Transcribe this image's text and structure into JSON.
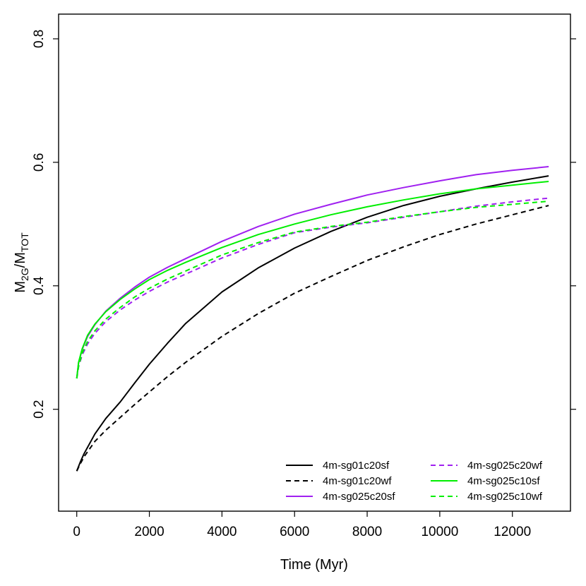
{
  "chart_data": {
    "type": "line",
    "xlabel": "Time (Myr)",
    "ylabel": {
      "main_1": "M",
      "sub_1": "2G",
      "slash": "/",
      "main_2": "M",
      "sub_2": "TOT"
    },
    "xlim": [
      -500,
      13600
    ],
    "ylim": [
      0.035,
      0.84
    ],
    "xticks": [
      0,
      2000,
      4000,
      6000,
      8000,
      10000,
      12000
    ],
    "yticks": [
      0.2,
      0.4,
      0.6,
      0.8
    ],
    "ytick_labels": [
      "0.2",
      "0.4",
      "0.6",
      "0.8"
    ],
    "grid": false,
    "legend_position": "bottom-right",
    "series": [
      {
        "name": "4m-sg01c20sf",
        "color": "#000000",
        "dash": "solid",
        "x": [
          0,
          100,
          200,
          500,
          800,
          1200,
          1600,
          2000,
          2500,
          3000,
          4000,
          5000,
          6000,
          7000,
          8000,
          9000,
          10000,
          11000,
          12000,
          13000
        ],
        "y": [
          0.1,
          0.115,
          0.128,
          0.16,
          0.185,
          0.212,
          0.243,
          0.273,
          0.307,
          0.339,
          0.39,
          0.429,
          0.461,
          0.488,
          0.511,
          0.53,
          0.545,
          0.557,
          0.568,
          0.578
        ]
      },
      {
        "name": "4m-sg01c20wf",
        "color": "#000000",
        "dash": "dashed",
        "x": [
          0,
          100,
          200,
          500,
          800,
          1200,
          1600,
          2000,
          2500,
          3000,
          4000,
          5000,
          6000,
          7000,
          8000,
          9000,
          10000,
          11000,
          12000,
          13000
        ],
        "y": [
          0.1,
          0.112,
          0.123,
          0.148,
          0.166,
          0.187,
          0.208,
          0.228,
          0.253,
          0.276,
          0.318,
          0.355,
          0.388,
          0.415,
          0.441,
          0.463,
          0.483,
          0.5,
          0.515,
          0.53
        ]
      },
      {
        "name": "4m-sg025c20sf",
        "color": "#a020f0",
        "dash": "solid",
        "x": [
          0,
          50,
          150,
          300,
          500,
          800,
          1200,
          1600,
          2000,
          2500,
          3000,
          4000,
          5000,
          6000,
          7000,
          8000,
          9000,
          10000,
          11000,
          12000,
          13000
        ],
        "y": [
          0.25,
          0.275,
          0.297,
          0.318,
          0.337,
          0.359,
          0.38,
          0.398,
          0.414,
          0.43,
          0.444,
          0.472,
          0.496,
          0.516,
          0.532,
          0.547,
          0.559,
          0.57,
          0.58,
          0.587,
          0.593
        ]
      },
      {
        "name": "4m-sg025c20wf",
        "color": "#a020f0",
        "dash": "dashed",
        "x": [
          0,
          50,
          150,
          300,
          500,
          800,
          1200,
          1600,
          2000,
          2500,
          3000,
          4000,
          5000,
          6000,
          7000,
          8000,
          9000,
          10000,
          11000,
          12000,
          13000
        ],
        "y": [
          0.25,
          0.269,
          0.288,
          0.306,
          0.323,
          0.342,
          0.361,
          0.377,
          0.391,
          0.406,
          0.419,
          0.445,
          0.467,
          0.486,
          0.495,
          0.502,
          0.511,
          0.52,
          0.529,
          0.536,
          0.542
        ]
      },
      {
        "name": "4m-sg025c10sf",
        "color": "#00ee00",
        "dash": "solid",
        "x": [
          0,
          50,
          150,
          300,
          500,
          800,
          1200,
          1600,
          2000,
          2500,
          3000,
          4000,
          5000,
          6000,
          7000,
          8000,
          9000,
          10000,
          11000,
          12000,
          13000
        ],
        "y": [
          0.25,
          0.276,
          0.298,
          0.32,
          0.338,
          0.358,
          0.378,
          0.395,
          0.41,
          0.425,
          0.438,
          0.462,
          0.483,
          0.5,
          0.515,
          0.528,
          0.539,
          0.549,
          0.557,
          0.563,
          0.569
        ]
      },
      {
        "name": "4m-sg025c10wf",
        "color": "#00ee00",
        "dash": "dashed",
        "x": [
          0,
          50,
          150,
          300,
          500,
          800,
          1200,
          1600,
          2000,
          2500,
          3000,
          4000,
          5000,
          6000,
          7000,
          8000,
          9000,
          10000,
          11000,
          12000,
          13000
        ],
        "y": [
          0.25,
          0.27,
          0.291,
          0.31,
          0.327,
          0.346,
          0.365,
          0.382,
          0.396,
          0.411,
          0.424,
          0.45,
          0.47,
          0.487,
          0.496,
          0.503,
          0.512,
          0.52,
          0.527,
          0.532,
          0.537
        ]
      }
    ]
  }
}
